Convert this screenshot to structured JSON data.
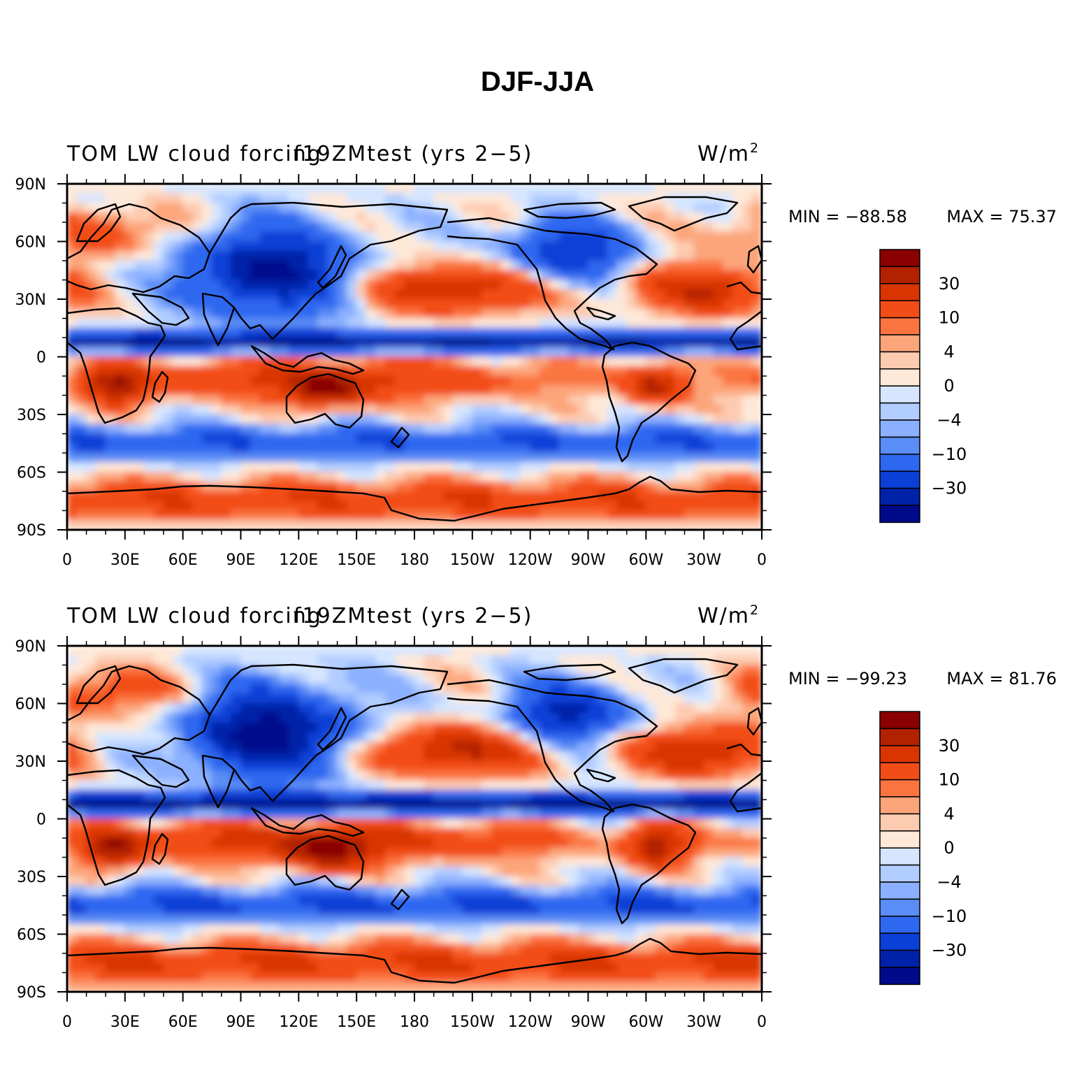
{
  "chart_data": {
    "title": "DJF-JJA",
    "type": "heatmap",
    "panels": [
      {
        "id": "top",
        "left_title": "TOM LW cloud forcing",
        "center_title": "f19ZMtest (yrs 2−5)",
        "units_base": "W/m",
        "units_exp": "2",
        "min_label": "MIN = −88.58",
        "max_label": "MAX =  75.37",
        "min": -88.58,
        "max": 75.37,
        "amp": 1.0
      },
      {
        "id": "bottom",
        "left_title": "TOM LW cloud forcing",
        "center_title": "f19ZMtest (yrs 2−5)",
        "units_base": "W/m",
        "units_exp": "2",
        "min_label": "MIN = −99.23",
        "max_label": "MAX =  81.76",
        "min": -99.23,
        "max": 81.76,
        "amp": 1.1
      }
    ],
    "x_ticks": [
      "0",
      "30E",
      "60E",
      "90E",
      "120E",
      "150E",
      "180",
      "150W",
      "120W",
      "90W",
      "60W",
      "30W",
      "0"
    ],
    "x_range": [
      0,
      360
    ],
    "y_ticks": [
      "90N",
      "60N",
      "30N",
      "0",
      "30S",
      "60S",
      "90S"
    ],
    "y_range": [
      90,
      -90
    ],
    "colorbar": {
      "levels": [
        -50,
        -40,
        -30,
        -20,
        -10,
        -7,
        -4,
        -2,
        0,
        2,
        4,
        7,
        10,
        20,
        30,
        40
      ],
      "labels": [
        "30",
        "10",
        "4",
        "0",
        "−4",
        "−10",
        "−30"
      ],
      "colors": [
        "#8b0000",
        "#b22200",
        "#d83500",
        "#f24d18",
        "#fb7440",
        "#fca57a",
        "#fdcbb0",
        "#fee8d8",
        "#d6e6ff",
        "#b2cdff",
        "#8bb0ff",
        "#5a8df5",
        "#2f68f0",
        "#0b40d6",
        "#0022a8",
        "#000b8c"
      ]
    }
  }
}
